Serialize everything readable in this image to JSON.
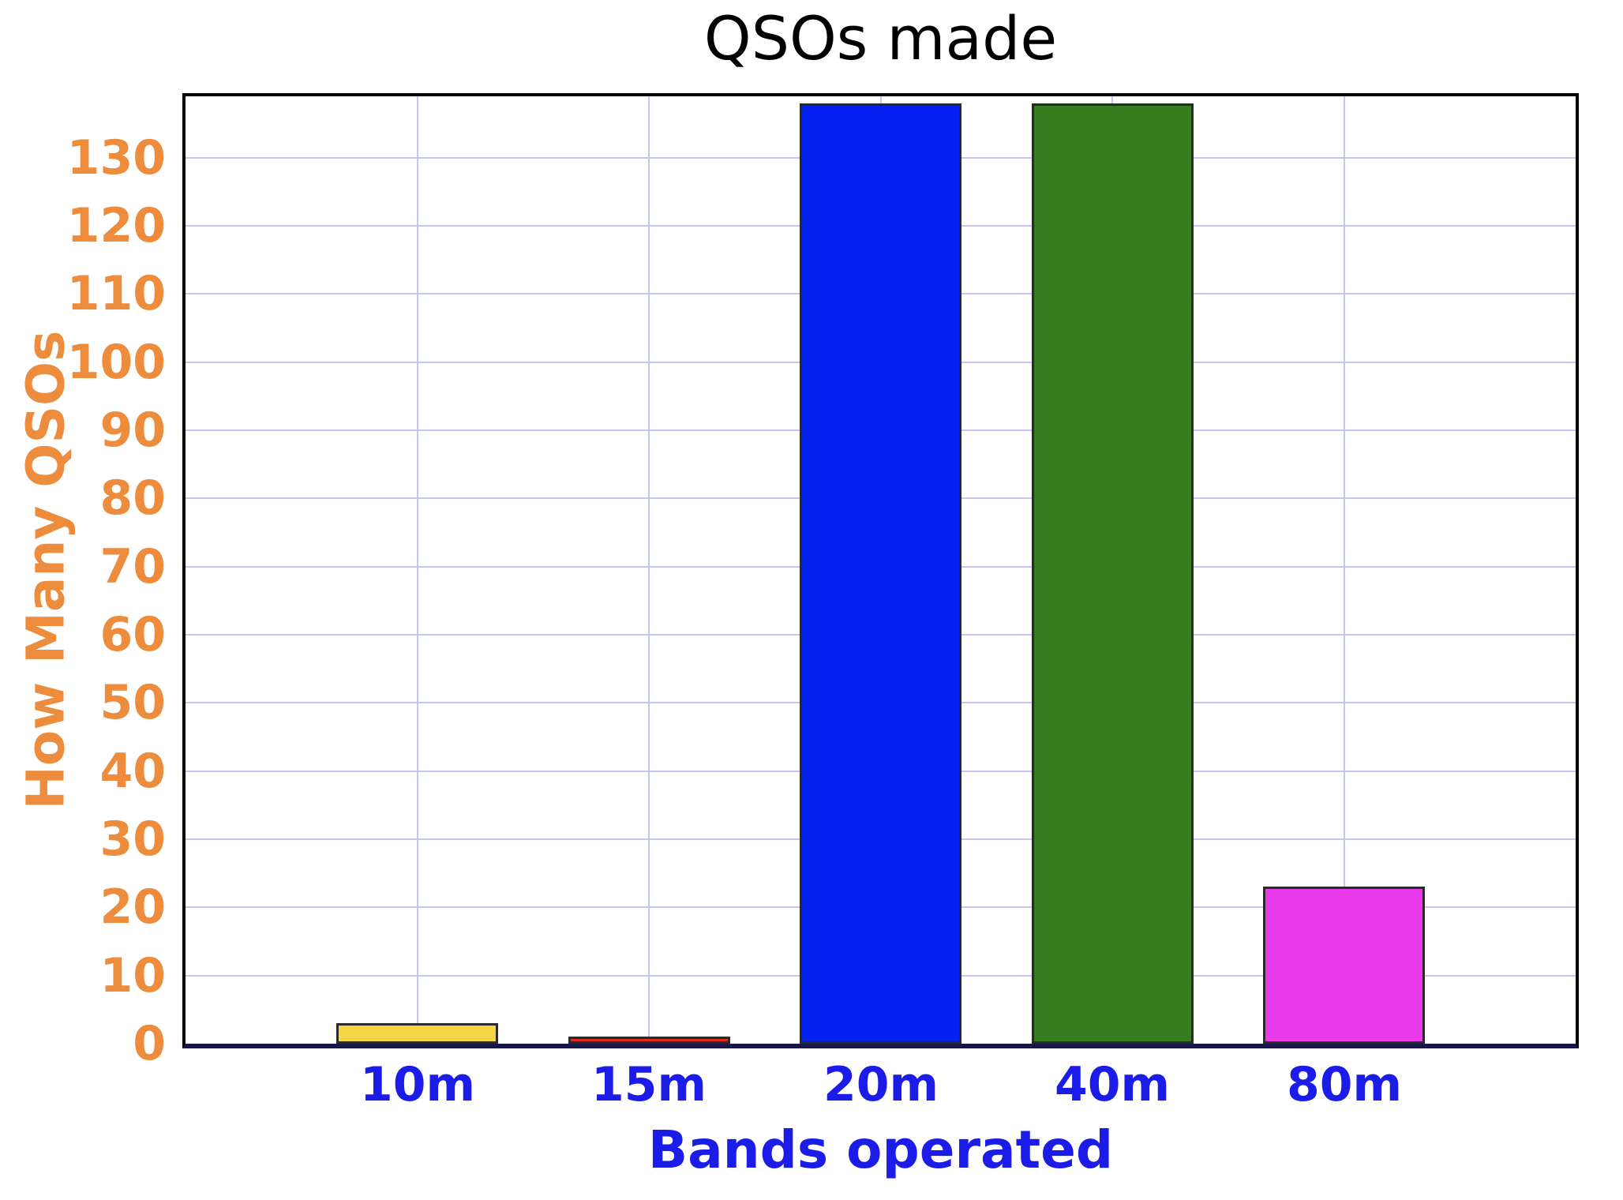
{
  "chart_data": {
    "type": "bar",
    "title": "QSOs made",
    "xlabel": "Bands operated",
    "ylabel": "How Many QSOs",
    "categories": [
      "10m",
      "15m",
      "20m",
      "40m",
      "80m"
    ],
    "values": [
      3,
      1,
      138,
      138,
      23
    ],
    "bar_colors": [
      "#F5D445",
      "#E3291D",
      "#0521F0",
      "#377D1F",
      "#E93BE9"
    ],
    "ylim": [
      0,
      139
    ],
    "yticks": [
      0,
      10,
      20,
      30,
      40,
      50,
      60,
      70,
      80,
      90,
      100,
      110,
      120,
      130
    ],
    "grid": "on",
    "legend": "none",
    "bar_width_fraction": 0.7
  },
  "colors": {
    "title_text": "#000000",
    "x_text": "#1C1CE8",
    "y_text": "#EC8C3C",
    "gridline": "#C5C5F2",
    "frame": "#000000",
    "baseline": "#16164B",
    "bar_edge": "#2A2A2A",
    "background": "#FFFFFF"
  }
}
